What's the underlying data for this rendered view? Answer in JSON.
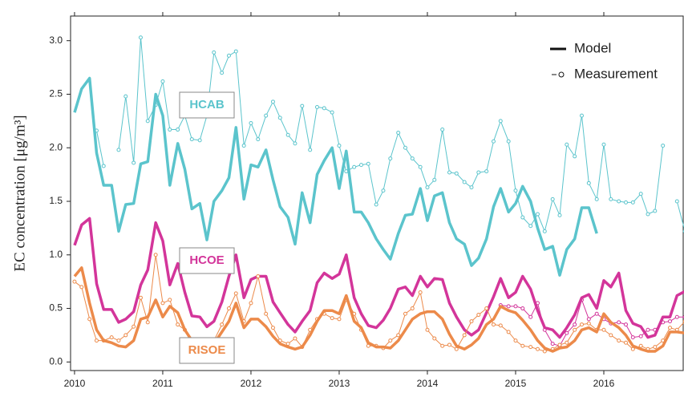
{
  "chart_data": {
    "type": "line",
    "y_label": "EC concentration [μg/m³]",
    "xlim": [
      2009.955,
      2016.9
    ],
    "ylim": [
      -0.08,
      3.23
    ],
    "xticks": [
      2010,
      2011,
      2012,
      2013,
      2014,
      2015,
      2016
    ],
    "yticks": [
      {
        "value": 0,
        "label": "0.0"
      },
      0.5,
      {
        "value": 1,
        "label": "1.0"
      },
      1.5,
      {
        "value": 2,
        "label": "2.0"
      },
      2.5,
      {
        "value": 3,
        "label": "3.0"
      }
    ],
    "legend": [
      "Model",
      "Measurement"
    ],
    "x": [
      2010,
      2010.08,
      2010.17,
      2010.25,
      2010.33,
      2010.42,
      2010.5,
      2010.58,
      2010.67,
      2010.75,
      2010.83,
      2010.92,
      2011,
      2011.08,
      2011.17,
      2011.25,
      2011.33,
      2011.42,
      2011.5,
      2011.58,
      2011.67,
      2011.75,
      2011.83,
      2011.92,
      2012,
      2012.08,
      2012.17,
      2012.25,
      2012.33,
      2012.42,
      2012.5,
      2012.58,
      2012.67,
      2012.75,
      2012.83,
      2012.92,
      2013,
      2013.08,
      2013.17,
      2013.25,
      2013.33,
      2013.42,
      2013.5,
      2013.58,
      2013.67,
      2013.75,
      2013.83,
      2013.92,
      2014,
      2014.08,
      2014.17,
      2014.25,
      2014.33,
      2014.42,
      2014.5,
      2014.58,
      2014.67,
      2014.75,
      2014.83,
      2014.92,
      2015,
      2015.08,
      2015.17,
      2015.25,
      2015.33,
      2015.42,
      2015.5,
      2015.58,
      2015.67,
      2015.75,
      2015.83,
      2015.92,
      2016,
      2016.08,
      2016.17,
      2016.25,
      2016.33,
      2016.42,
      2016.5,
      2016.58,
      2016.67,
      2016.75,
      2016.83,
      2016.92
    ],
    "sites": [
      {
        "name": "HCAB",
        "color": "#5bc4cc",
        "model": [
          2.33,
          2.55,
          2.65,
          1.95,
          1.65,
          1.65,
          1.22,
          1.47,
          1.48,
          1.85,
          1.87,
          2.5,
          2.3,
          1.65,
          2.04,
          1.8,
          1.43,
          1.48,
          1.14,
          1.5,
          1.6,
          1.72,
          2.19,
          1.52,
          1.84,
          1.82,
          1.98,
          1.7,
          1.45,
          1.35,
          1.1,
          1.58,
          1.3,
          1.75,
          1.88,
          2.0,
          1.62,
          1.97,
          1.4,
          1.4,
          1.3,
          1.15,
          1.05,
          0.96,
          1.2,
          1.37,
          1.38,
          1.62,
          1.32,
          1.55,
          1.58,
          1.3,
          1.15,
          1.1,
          0.9,
          0.97,
          1.15,
          1.45,
          1.62,
          1.4,
          1.48,
          1.64,
          1.5,
          1.25,
          1.05,
          1.08,
          0.81,
          1.05,
          1.15,
          1.44,
          1.44,
          1.2,
          null,
          null,
          null,
          null,
          null,
          null,
          null,
          null,
          null,
          null,
          null,
          null
        ],
        "measurement": [
          null,
          null,
          null,
          2.16,
          1.83,
          null,
          1.98,
          2.48,
          1.86,
          3.03,
          2.25,
          2.4,
          2.62,
          2.17,
          2.17,
          2.3,
          2.08,
          2.07,
          2.3,
          2.89,
          2.7,
          2.86,
          2.9,
          2.02,
          2.23,
          2.08,
          2.3,
          2.43,
          2.28,
          2.12,
          2.04,
          2.39,
          1.98,
          2.38,
          2.37,
          2.33,
          2.02,
          1.78,
          1.82,
          1.84,
          1.85,
          1.47,
          1.6,
          1.9,
          2.14,
          2.0,
          1.9,
          1.82,
          1.63,
          1.7,
          2.17,
          1.77,
          1.76,
          1.68,
          1.63,
          1.77,
          1.78,
          2.06,
          2.25,
          2.06,
          1.6,
          1.35,
          1.27,
          1.38,
          1.22,
          1.52,
          1.37,
          2.03,
          1.92,
          2.3,
          1.67,
          1.52,
          2.03,
          1.52,
          1.5,
          1.49,
          1.49,
          1.57,
          1.38,
          1.41,
          2.02,
          null,
          1.5,
          1.22
        ]
      },
      {
        "name": "HCOE",
        "color": "#d3359a",
        "model": [
          1.09,
          1.28,
          1.34,
          0.73,
          0.49,
          0.49,
          0.37,
          0.4,
          0.47,
          0.72,
          0.86,
          1.3,
          1.13,
          0.72,
          0.92,
          0.65,
          0.43,
          0.42,
          0.33,
          0.38,
          0.56,
          0.8,
          1.0,
          0.6,
          0.77,
          0.8,
          0.8,
          0.56,
          0.46,
          0.35,
          0.28,
          0.38,
          0.48,
          0.74,
          0.83,
          0.78,
          0.82,
          1.0,
          0.6,
          0.45,
          0.34,
          0.32,
          0.39,
          0.5,
          0.68,
          0.7,
          0.62,
          0.8,
          0.7,
          0.78,
          0.77,
          0.55,
          0.42,
          0.3,
          0.25,
          0.3,
          0.46,
          0.61,
          0.78,
          0.6,
          0.65,
          0.8,
          0.68,
          0.48,
          0.32,
          0.3,
          0.23,
          0.32,
          0.44,
          0.6,
          0.63,
          0.5,
          0.76,
          0.7,
          0.83,
          0.48,
          0.36,
          0.33,
          0.23,
          0.25,
          0.42,
          0.42,
          0.62,
          0.66
        ],
        "measurement": [
          null,
          null,
          null,
          null,
          null,
          null,
          null,
          null,
          null,
          null,
          null,
          null,
          null,
          null,
          null,
          null,
          null,
          null,
          null,
          null,
          null,
          null,
          null,
          null,
          null,
          null,
          null,
          null,
          null,
          null,
          null,
          null,
          null,
          null,
          null,
          null,
          null,
          null,
          null,
          null,
          null,
          null,
          null,
          null,
          null,
          null,
          null,
          null,
          null,
          null,
          null,
          null,
          null,
          null,
          null,
          null,
          null,
          null,
          0.53,
          0.52,
          0.52,
          0.5,
          0.42,
          0.55,
          0.3,
          0.17,
          0.15,
          0.27,
          0.35,
          0.58,
          0.4,
          0.45,
          0.4,
          0.36,
          0.37,
          0.35,
          0.23,
          0.24,
          0.3,
          0.3,
          0.37,
          0.38,
          0.42,
          0.42
        ]
      },
      {
        "name": "RISOE",
        "color": "#ec8a4a",
        "model": [
          0.8,
          0.88,
          0.55,
          0.3,
          0.2,
          0.18,
          0.15,
          0.14,
          0.2,
          0.4,
          0.42,
          0.58,
          0.42,
          0.52,
          0.46,
          0.3,
          0.2,
          0.18,
          0.14,
          0.17,
          0.28,
          0.38,
          0.55,
          0.32,
          0.4,
          0.4,
          0.33,
          0.24,
          0.17,
          0.14,
          0.12,
          0.14,
          0.25,
          0.38,
          0.48,
          0.48,
          0.45,
          0.62,
          0.38,
          0.32,
          0.18,
          0.14,
          0.14,
          0.13,
          0.2,
          0.3,
          0.4,
          0.45,
          0.47,
          0.47,
          0.4,
          0.26,
          0.15,
          0.12,
          0.16,
          0.22,
          0.35,
          0.4,
          0.52,
          0.48,
          0.46,
          0.39,
          0.3,
          0.2,
          0.13,
          0.1,
          0.13,
          0.14,
          0.2,
          0.3,
          0.32,
          0.28,
          0.45,
          0.37,
          0.32,
          0.25,
          0.15,
          0.12,
          0.1,
          0.1,
          0.15,
          0.28,
          0.28,
          0.27
        ],
        "measurement": [
          0.75,
          0.7,
          0.4,
          0.2,
          0.2,
          0.23,
          0.2,
          0.25,
          0.33,
          0.6,
          0.37,
          1.0,
          0.55,
          0.58,
          0.35,
          0.3,
          0.2,
          0.15,
          0.12,
          0.2,
          0.35,
          0.5,
          0.64,
          0.38,
          0.55,
          0.8,
          0.45,
          0.32,
          0.2,
          0.17,
          0.22,
          0.14,
          0.3,
          0.4,
          0.45,
          0.41,
          0.4,
          0.58,
          0.45,
          0.3,
          0.15,
          0.15,
          0.13,
          0.2,
          0.25,
          0.45,
          0.5,
          0.65,
          0.3,
          0.22,
          0.15,
          0.16,
          0.12,
          0.25,
          0.38,
          0.44,
          0.5,
          0.35,
          0.34,
          0.28,
          0.2,
          0.15,
          0.14,
          0.12,
          0.1,
          0.12,
          0.16,
          0.18,
          0.3,
          0.35,
          0.36,
          0.3,
          0.3,
          0.25,
          0.2,
          0.18,
          0.12,
          0.15,
          0.12,
          0.14,
          0.2,
          0.32,
          0.3,
          0.38
        ]
      }
    ]
  }
}
